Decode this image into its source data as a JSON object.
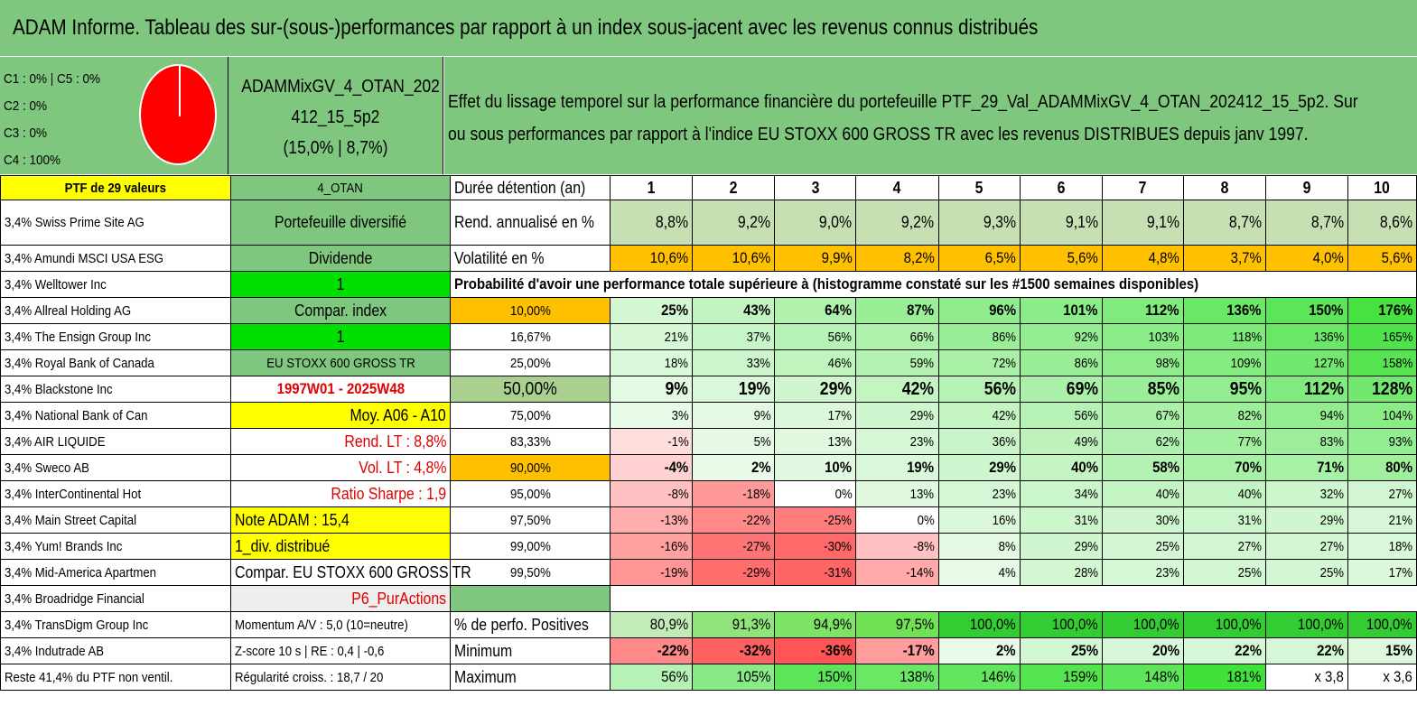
{
  "title": "ADAM Informe. Tableau des sur-(sous-)performances par rapport à un index sous-jacent avec les revenus connus distribués",
  "categories_legend": [
    "C1 : 0% | C5 : 0%",
    "C2 : 0%",
    "C3 : 0%",
    "C4 : 100%"
  ],
  "portfolio_name": [
    "ADAMMixGV_4_OTAN_202",
    "412_15_5p2",
    "(15,0% | 8,7%)"
  ],
  "description": [
    "Effet du lissage temporel sur la performance financière du portefeuille PTF_29_Val_ADAMMixGV_4_OTAN_202412_15_5p2. Sur",
    "ou sous performances par rapport à l'indice EU STOXX 600 GROSS TR avec les revenus DISTRIBUES depuis janv 1997."
  ],
  "ptf_label": "PTF de 29 valeurs",
  "strategy": "4_OTAN",
  "duration_label": "Durée détention (an)",
  "years": [
    "1",
    "2",
    "3",
    "4",
    "5",
    "6",
    "7",
    "8",
    "9",
    "10"
  ],
  "holdings": [
    "3,4% Swiss Prime Site AG",
    "3,4% Amundi MSCI USA ESG",
    "3,4% Welltower Inc",
    "3,4% Allreal Holding AG",
    "3,4% The Ensign Group Inc",
    "3,4% Royal Bank of Canada",
    "3,4% Blackstone Inc",
    "3,4% National Bank of Can",
    "3,4% AIR LIQUIDE",
    "3,4% Sweco AB",
    "3,4% InterContinental Hot",
    "3,4% Main Street Capital",
    "3,4% Yum! Brands Inc",
    "3,4% Mid-America Apartmen",
    "3,4% Broadridge Financial",
    "3,4% TransDigm Group Inc",
    "3,4% Indutrade AB",
    "Reste 41,4% du PTF non ventil."
  ],
  "mid": {
    "portfolio_type": "Portefeuille diversifié",
    "dividend": "Dividende",
    "one_a": "1",
    "compar_index": "Compar. index",
    "one_b": "1",
    "index_name": "EU STOXX 600 GROSS TR",
    "period": "1997W01 - 2025W48",
    "moy": "Moy. A06 - A10",
    "rend_lt": "Rend. LT : 8,8%",
    "vol_lt": "Vol. LT : 4,8%",
    "sharpe": "Ratio Sharpe : 1,9",
    "note": "Note ADAM : 15,4",
    "div_distrib": "1_div. distribué",
    "compar_full": "Compar. EU STOXX 600 GROSS TR",
    "p6": "P6_PurActions",
    "momentum": "Momentum A/V : 5,0 (10=neutre)",
    "zscore": "Z-score 10 s | RE : 0,4 | -0,6",
    "regularite": "Régularité croiss. : 18,7 / 20"
  },
  "rend_label": "Rend. annualisé en %",
  "rend": [
    "8,8%",
    "9,2%",
    "9,0%",
    "9,2%",
    "9,3%",
    "9,1%",
    "9,1%",
    "8,7%",
    "8,7%",
    "8,6%"
  ],
  "vol_label": "Volatilité en %",
  "vol": [
    "10,6%",
    "10,6%",
    "9,9%",
    "8,2%",
    "6,5%",
    "5,6%",
    "4,8%",
    "3,7%",
    "4,0%",
    "5,6%"
  ],
  "prob_label": "Probabilité d'avoir une performance totale supérieure à (histogramme constaté sur les #1500 semaines disponibles)",
  "prob_rows": [
    {
      "p": "10,00%",
      "v": [
        "25%",
        "43%",
        "64%",
        "87%",
        "96%",
        "101%",
        "112%",
        "136%",
        "150%",
        "176%"
      ]
    },
    {
      "p": "16,67%",
      "v": [
        "21%",
        "37%",
        "56%",
        "66%",
        "86%",
        "92%",
        "103%",
        "118%",
        "136%",
        "165%"
      ]
    },
    {
      "p": "25,00%",
      "v": [
        "18%",
        "33%",
        "46%",
        "59%",
        "72%",
        "86%",
        "98%",
        "109%",
        "127%",
        "158%"
      ]
    },
    {
      "p": "50,00%",
      "v": [
        "9%",
        "19%",
        "29%",
        "42%",
        "56%",
        "69%",
        "85%",
        "95%",
        "112%",
        "128%"
      ]
    },
    {
      "p": "75,00%",
      "v": [
        "3%",
        "9%",
        "17%",
        "29%",
        "42%",
        "56%",
        "67%",
        "82%",
        "94%",
        "104%"
      ]
    },
    {
      "p": "83,33%",
      "v": [
        "-1%",
        "5%",
        "13%",
        "23%",
        "36%",
        "49%",
        "62%",
        "77%",
        "83%",
        "93%"
      ]
    },
    {
      "p": "90,00%",
      "v": [
        "-4%",
        "2%",
        "10%",
        "19%",
        "29%",
        "40%",
        "58%",
        "70%",
        "71%",
        "80%"
      ]
    },
    {
      "p": "95,00%",
      "v": [
        "-8%",
        "-18%",
        "0%",
        "13%",
        "23%",
        "34%",
        "40%",
        "40%",
        "32%",
        "27%"
      ]
    },
    {
      "p": "97,50%",
      "v": [
        "-13%",
        "-22%",
        "-25%",
        "0%",
        "16%",
        "31%",
        "30%",
        "31%",
        "29%",
        "21%"
      ]
    },
    {
      "p": "99,00%",
      "v": [
        "-16%",
        "-27%",
        "-30%",
        "-8%",
        "8%",
        "29%",
        "25%",
        "27%",
        "27%",
        "18%"
      ]
    },
    {
      "p": "99,50%",
      "v": [
        "-19%",
        "-29%",
        "-31%",
        "-14%",
        "4%",
        "28%",
        "23%",
        "25%",
        "25%",
        "17%"
      ]
    }
  ],
  "pos_label": "% de perfo. Positives",
  "pos": [
    "80,9%",
    "91,3%",
    "94,9%",
    "97,5%",
    "100,0%",
    "100,0%",
    "100,0%",
    "100,0%",
    "100,0%",
    "100,0%"
  ],
  "min_label": "Minimum",
  "min": [
    "-22%",
    "-32%",
    "-36%",
    "-17%",
    "2%",
    "25%",
    "20%",
    "22%",
    "22%",
    "15%"
  ],
  "max_label": "Maximum",
  "max": [
    "56%",
    "105%",
    "150%",
    "138%",
    "146%",
    "159%",
    "148%",
    "181%",
    "x 3,8",
    "x 3,6"
  ],
  "colors": {
    "header_green": "#7fc77f",
    "yellow": "#ffff00",
    "orange": "#ffc000",
    "red_text": "#e00000"
  }
}
